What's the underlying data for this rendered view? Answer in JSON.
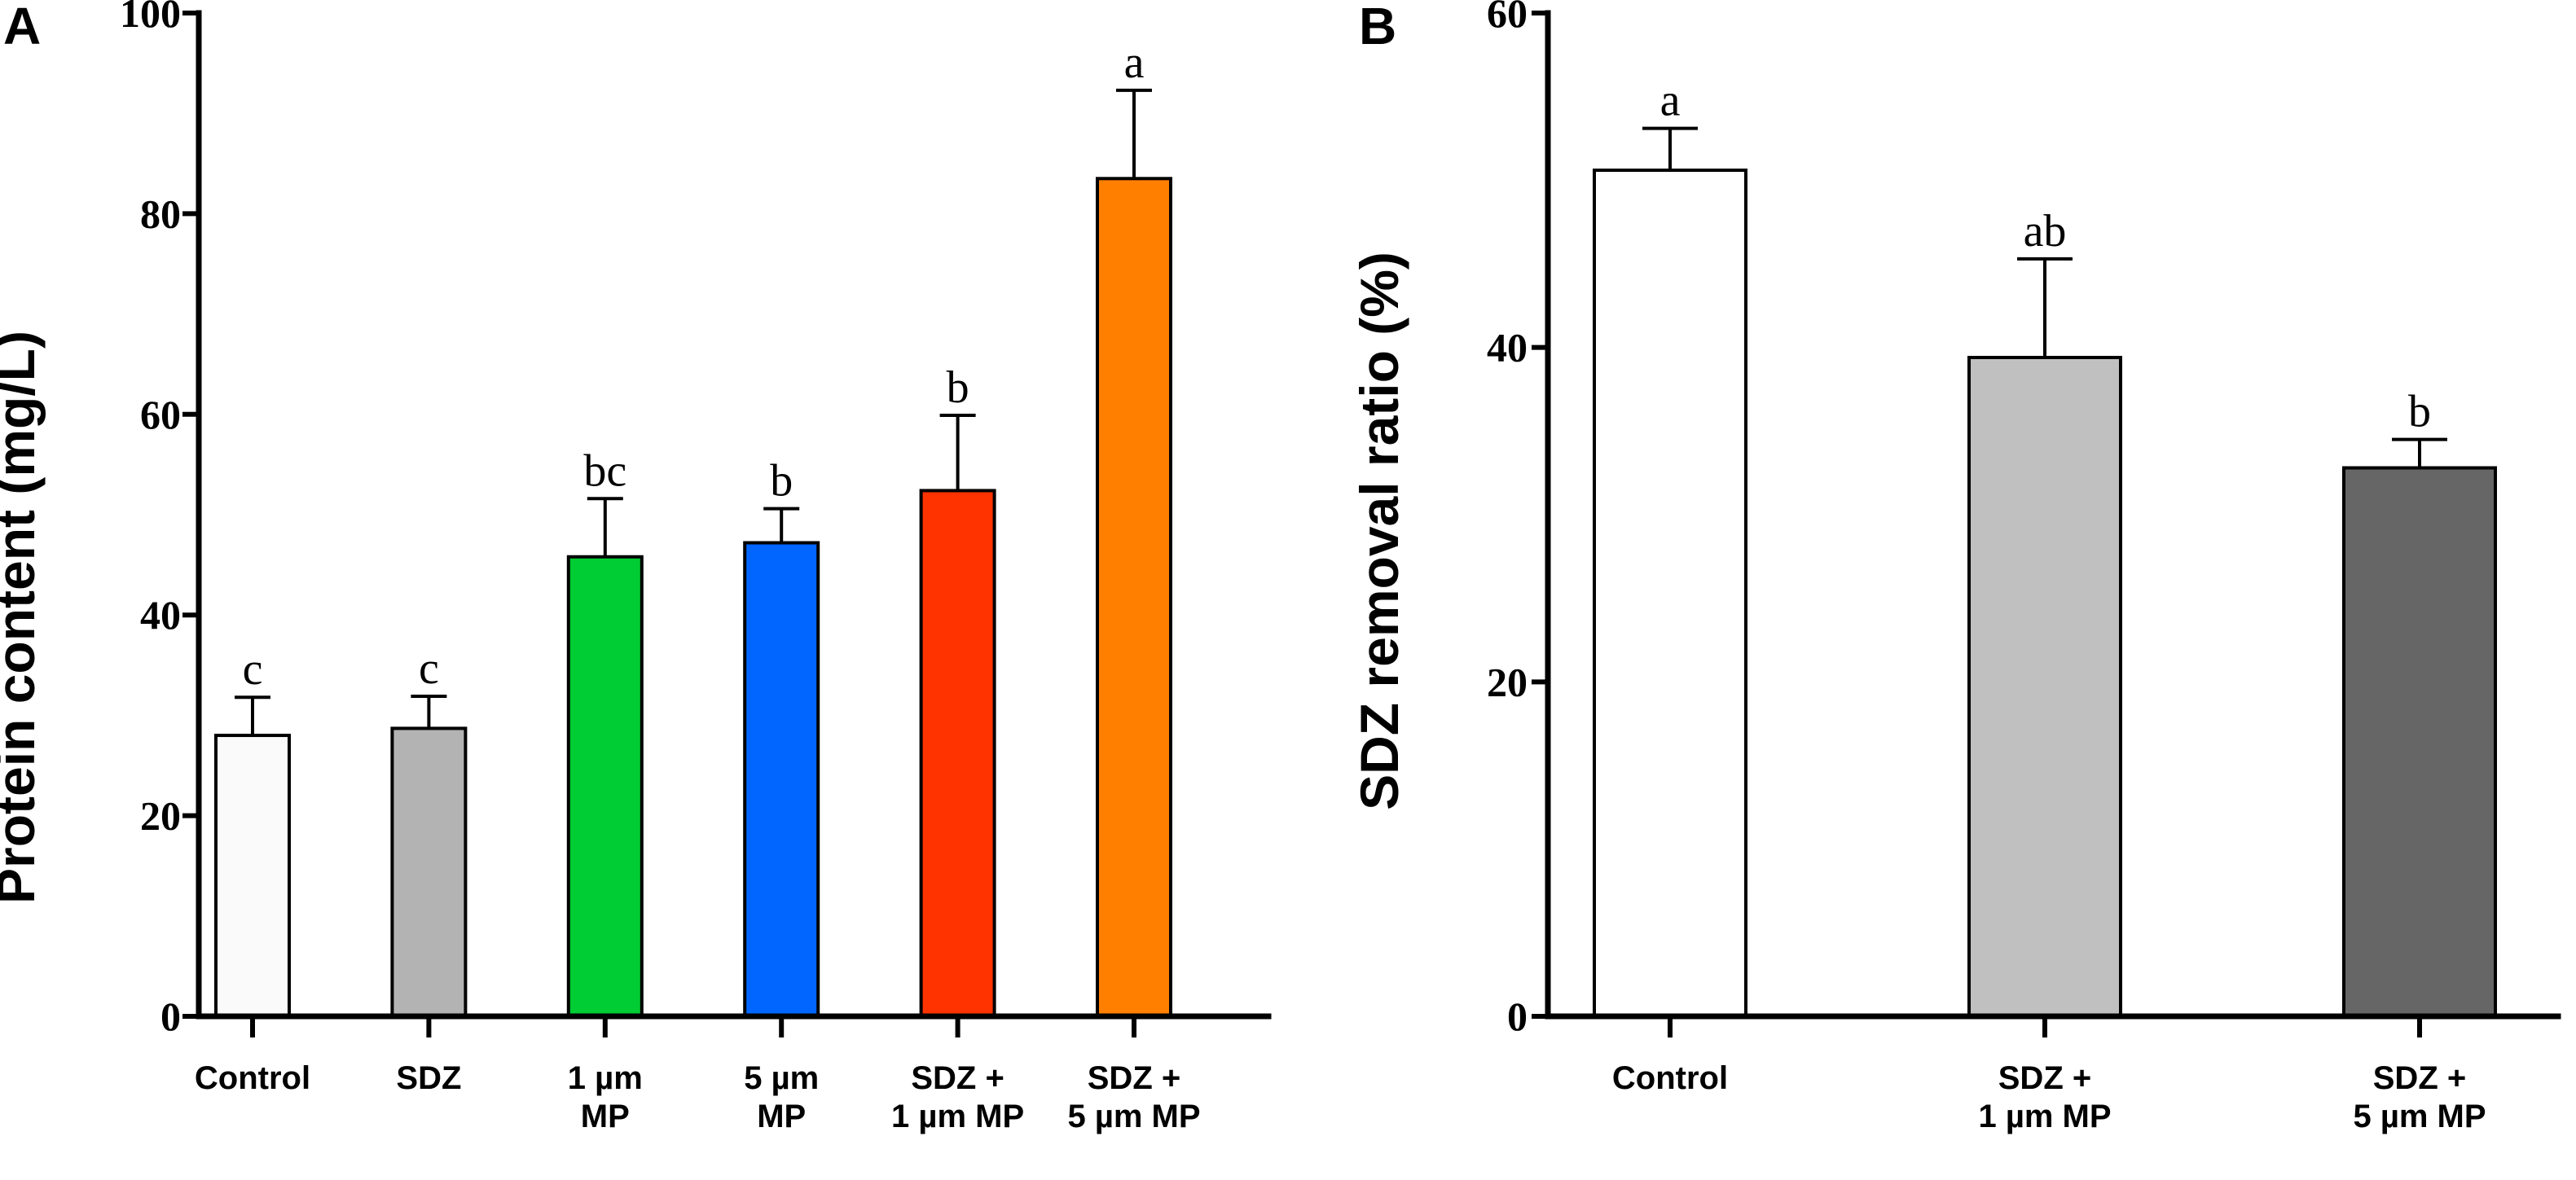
{
  "chart_data": [
    {
      "id": "A",
      "panel_label": "A",
      "type": "bar",
      "ylabel": "Protein content (mg/L)",
      "xlabel": "",
      "ylim": [
        0,
        100
      ],
      "yticks": [
        0,
        20,
        40,
        60,
        80,
        100
      ],
      "categories": [
        [
          "Control"
        ],
        [
          "SDZ"
        ],
        [
          "1 µm",
          "MP"
        ],
        [
          "5 µm",
          "MP"
        ],
        [
          "SDZ +",
          "1 µm MP"
        ],
        [
          "SDZ +",
          "5 µm MP"
        ]
      ],
      "values": [
        28,
        28.7,
        45.8,
        47.2,
        52.4,
        83.5
      ],
      "errors": [
        3.8,
        3.2,
        5.8,
        3.4,
        7.5,
        8.8
      ],
      "letters": [
        "c",
        "c",
        "bc",
        "b",
        "b",
        "a"
      ],
      "colors": [
        "#fafafa",
        "#b3b3b3",
        "#00cc33",
        "#0066ff",
        "#ff3300",
        "#ff8000"
      ]
    },
    {
      "id": "B",
      "panel_label": "B",
      "type": "bar",
      "ylabel": "SDZ removal ratio (%)",
      "xlabel": "",
      "ylim": [
        0,
        60
      ],
      "yticks": [
        0,
        20,
        40,
        60
      ],
      "categories": [
        [
          "Control"
        ],
        [
          "SDZ +",
          "1 µm MP"
        ],
        [
          "SDZ +",
          "5 µm MP"
        ]
      ],
      "values": [
        50.6,
        39.4,
        32.8
      ],
      "errors": [
        2.5,
        5.9,
        1.7
      ],
      "letters": [
        "a",
        "ab",
        "b"
      ],
      "colors": [
        "#ffffff",
        "#c0c0c0",
        "#666666"
      ]
    }
  ]
}
